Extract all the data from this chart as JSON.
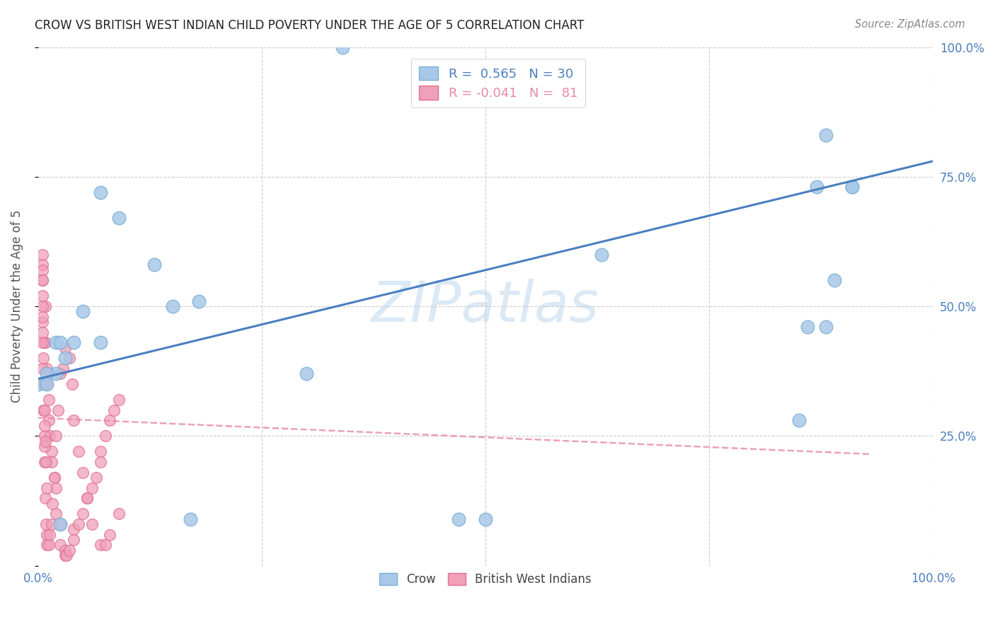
{
  "title": "CROW VS BRITISH WEST INDIAN CHILD POVERTY UNDER THE AGE OF 5 CORRELATION CHART",
  "source": "Source: ZipAtlas.com",
  "ylabel": "Child Poverty Under the Age of 5",
  "xlim": [
    0.0,
    1.0
  ],
  "ylim": [
    0.0,
    1.0
  ],
  "watermark": "ZIPatlas",
  "crow_color": "#a8c8e8",
  "crow_edge_color": "#7aafd4",
  "bwi_color": "#f0a0b8",
  "bwi_edge_color": "#e07090",
  "crow_R": 0.565,
  "crow_N": 30,
  "bwi_R": -0.041,
  "bwi_N": 81,
  "crow_line_color": "#4a7fc0",
  "bwi_line_color": "#e888a8",
  "crow_points_x": [
    0.34,
    0.07,
    0.09,
    0.13,
    0.15,
    0.18,
    0.02,
    0.03,
    0.05,
    0.02,
    0.01,
    0.63,
    0.88,
    0.91,
    0.91,
    0.87,
    0.85,
    0.47,
    0.3,
    0.0,
    0.01,
    0.17,
    0.025,
    0.025,
    0.5,
    0.88,
    0.89,
    0.86,
    0.07,
    0.04
  ],
  "crow_points_y": [
    1.0,
    0.72,
    0.67,
    0.58,
    0.5,
    0.51,
    0.43,
    0.4,
    0.49,
    0.37,
    0.37,
    0.6,
    0.83,
    0.73,
    0.73,
    0.73,
    0.28,
    0.09,
    0.37,
    0.35,
    0.35,
    0.09,
    0.08,
    0.43,
    0.09,
    0.46,
    0.55,
    0.46,
    0.43,
    0.43
  ],
  "bwi_points_x": [
    0.005,
    0.005,
    0.005,
    0.007,
    0.008,
    0.008,
    0.01,
    0.01,
    0.012,
    0.012,
    0.013,
    0.015,
    0.015,
    0.018,
    0.02,
    0.02,
    0.025,
    0.025,
    0.03,
    0.03,
    0.032,
    0.035,
    0.04,
    0.04,
    0.045,
    0.05,
    0.055,
    0.06,
    0.065,
    0.07,
    0.07,
    0.075,
    0.08,
    0.085,
    0.09,
    0.005,
    0.005,
    0.005,
    0.005,
    0.005,
    0.005,
    0.006,
    0.006,
    0.007,
    0.007,
    0.007,
    0.008,
    0.009,
    0.01,
    0.01,
    0.012,
    0.013,
    0.015,
    0.016,
    0.018,
    0.02,
    0.022,
    0.025,
    0.028,
    0.03,
    0.035,
    0.038,
    0.04,
    0.045,
    0.05,
    0.055,
    0.06,
    0.07,
    0.075,
    0.08,
    0.09,
    0.005,
    0.005,
    0.005,
    0.006,
    0.006,
    0.007,
    0.007,
    0.008,
    0.009,
    0.01
  ],
  "bwi_points_y": [
    0.58,
    0.52,
    0.47,
    0.43,
    0.43,
    0.5,
    0.38,
    0.35,
    0.32,
    0.28,
    0.25,
    0.22,
    0.2,
    0.17,
    0.15,
    0.1,
    0.08,
    0.04,
    0.03,
    0.02,
    0.02,
    0.03,
    0.05,
    0.07,
    0.08,
    0.1,
    0.13,
    0.15,
    0.17,
    0.2,
    0.22,
    0.25,
    0.28,
    0.3,
    0.32,
    0.57,
    0.6,
    0.55,
    0.48,
    0.43,
    0.38,
    0.35,
    0.3,
    0.25,
    0.23,
    0.2,
    0.13,
    0.08,
    0.06,
    0.04,
    0.04,
    0.06,
    0.08,
    0.12,
    0.17,
    0.25,
    0.3,
    0.37,
    0.38,
    0.42,
    0.4,
    0.35,
    0.28,
    0.22,
    0.18,
    0.13,
    0.08,
    0.04,
    0.04,
    0.06,
    0.1,
    0.55,
    0.5,
    0.45,
    0.4,
    0.35,
    0.3,
    0.27,
    0.24,
    0.2,
    0.15
  ],
  "crow_line_x": [
    0.0,
    1.0
  ],
  "crow_line_y": [
    0.36,
    0.78
  ],
  "bwi_line_x": [
    0.0,
    0.93
  ],
  "bwi_line_y": [
    0.285,
    0.215
  ],
  "background_color": "#ffffff"
}
